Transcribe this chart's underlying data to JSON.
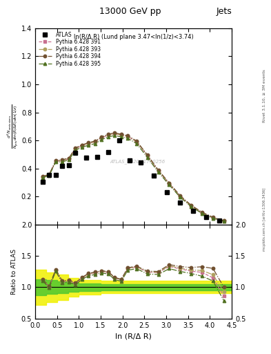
{
  "title": "13000 GeV pp",
  "title_right": "Jets",
  "inner_title": "ln(R/Δ R) (Lund plane 3.47<ln(1/z)<3.74)",
  "watermark": "ATLAS_2020_I1790256",
  "xlabel": "ln (R/Δ R)",
  "ylabel_ratio": "Ratio to ATLAS",
  "right_label_top": "Rivet 3.1.10, ≥ 3M events",
  "right_label_bot": "mcplots.cern.ch [arXiv:1306.3436]",
  "ylim_main": [
    0.0,
    1.4
  ],
  "ylim_ratio": [
    0.5,
    2.0
  ],
  "xlim": [
    0.0,
    4.5
  ],
  "atlas_x": [
    0.17,
    0.32,
    0.47,
    0.62,
    0.77,
    0.92,
    1.17,
    1.42,
    1.67,
    1.92,
    2.17,
    2.42,
    2.72,
    3.02,
    3.32,
    3.62,
    3.92,
    4.22
  ],
  "atlas_y": [
    0.305,
    0.352,
    0.355,
    0.42,
    0.425,
    0.51,
    0.478,
    0.48,
    0.515,
    0.6,
    0.455,
    0.44,
    0.35,
    0.23,
    0.155,
    0.095,
    0.052,
    0.028
  ],
  "py391_x": [
    0.17,
    0.32,
    0.47,
    0.62,
    0.77,
    0.92,
    1.07,
    1.22,
    1.37,
    1.52,
    1.67,
    1.82,
    1.97,
    2.12,
    2.32,
    2.57,
    2.82,
    3.07,
    3.32,
    3.57,
    3.82,
    4.07,
    4.32
  ],
  "py391_y": [
    0.34,
    0.355,
    0.452,
    0.455,
    0.468,
    0.54,
    0.562,
    0.578,
    0.59,
    0.618,
    0.638,
    0.648,
    0.638,
    0.628,
    0.59,
    0.49,
    0.382,
    0.29,
    0.2,
    0.132,
    0.082,
    0.046,
    0.024
  ],
  "py393_x": [
    0.17,
    0.32,
    0.47,
    0.62,
    0.77,
    0.92,
    1.07,
    1.22,
    1.37,
    1.52,
    1.67,
    1.82,
    1.97,
    2.12,
    2.32,
    2.57,
    2.82,
    3.07,
    3.32,
    3.57,
    3.82,
    4.07,
    4.32
  ],
  "py393_y": [
    0.34,
    0.355,
    0.452,
    0.458,
    0.47,
    0.542,
    0.564,
    0.58,
    0.592,
    0.62,
    0.64,
    0.65,
    0.64,
    0.63,
    0.592,
    0.492,
    0.384,
    0.292,
    0.202,
    0.134,
    0.084,
    0.048,
    0.026
  ],
  "py394_x": [
    0.17,
    0.32,
    0.47,
    0.62,
    0.77,
    0.92,
    1.07,
    1.22,
    1.37,
    1.52,
    1.67,
    1.82,
    1.97,
    2.12,
    2.32,
    2.57,
    2.82,
    3.07,
    3.32,
    3.57,
    3.82,
    4.07,
    4.32
  ],
  "py394_y": [
    0.343,
    0.358,
    0.456,
    0.462,
    0.474,
    0.546,
    0.568,
    0.584,
    0.596,
    0.624,
    0.644,
    0.654,
    0.644,
    0.634,
    0.596,
    0.496,
    0.388,
    0.296,
    0.206,
    0.138,
    0.088,
    0.052,
    0.028
  ],
  "py395_x": [
    0.17,
    0.32,
    0.47,
    0.62,
    0.77,
    0.92,
    1.07,
    1.22,
    1.37,
    1.52,
    1.67,
    1.82,
    1.97,
    2.12,
    2.32,
    2.57,
    2.82,
    3.07,
    3.32,
    3.57,
    3.82,
    4.07,
    4.32
  ],
  "py395_y": [
    0.335,
    0.35,
    0.445,
    0.448,
    0.46,
    0.53,
    0.552,
    0.565,
    0.577,
    0.605,
    0.625,
    0.635,
    0.625,
    0.615,
    0.578,
    0.478,
    0.373,
    0.282,
    0.194,
    0.128,
    0.078,
    0.044,
    0.022
  ],
  "band_x_edges": [
    0.0,
    0.25,
    0.5,
    0.75,
    1.0,
    1.5,
    2.0,
    2.5,
    3.0,
    3.5,
    4.0,
    4.5
  ],
  "band_yellow_lo": [
    0.72,
    0.76,
    0.8,
    0.85,
    0.88,
    0.9,
    0.9,
    0.9,
    0.9,
    0.9,
    0.9
  ],
  "band_yellow_hi": [
    1.28,
    1.24,
    1.2,
    1.15,
    1.12,
    1.1,
    1.1,
    1.1,
    1.1,
    1.1,
    1.1
  ],
  "band_green_lo": [
    0.87,
    0.89,
    0.91,
    0.93,
    0.94,
    0.95,
    0.95,
    0.95,
    0.95,
    0.95,
    0.95
  ],
  "band_green_hi": [
    1.13,
    1.11,
    1.09,
    1.07,
    1.06,
    1.05,
    1.05,
    1.05,
    1.05,
    1.05,
    1.05
  ],
  "color_391": "#c87090",
  "color_393": "#b0a060",
  "color_394": "#705030",
  "color_395": "#507020",
  "color_atlas": "#000000",
  "yticks_main": [
    0.2,
    0.4,
    0.6,
    0.8,
    1.0,
    1.2,
    1.4
  ],
  "yticks_ratio": [
    0.5,
    1.0,
    1.5,
    2.0
  ],
  "xticks": [
    0,
    1,
    2,
    3,
    4
  ]
}
